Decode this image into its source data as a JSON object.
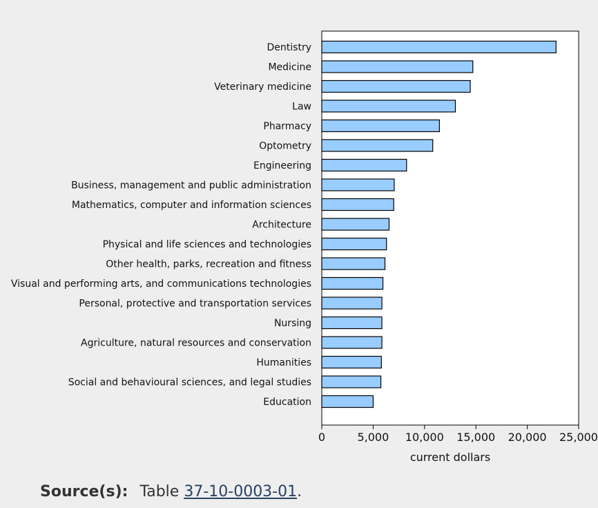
{
  "chart_data": {
    "type": "bar",
    "orientation": "horizontal",
    "categories": [
      "Dentistry",
      "Medicine",
      "Veterinary medicine",
      "Law",
      "Pharmacy",
      "Optometry",
      "Engineering",
      "Business, management and public administration",
      "Mathematics, computer and information sciences",
      "Architecture",
      "Physical and life sciences and technologies",
      "Other health, parks, recreation and fitness",
      "Visual and performing arts, and communications technologies",
      "Personal, protective and transportation services",
      "Nursing",
      "Agriculture, natural resources and conservation",
      "Humanities",
      "Social and behavioural sciences, and legal studies",
      "Education"
    ],
    "values": [
      22800,
      14700,
      14450,
      13000,
      11450,
      10800,
      8250,
      7050,
      7000,
      6550,
      6300,
      6150,
      5950,
      5850,
      5850,
      5850,
      5800,
      5750,
      5000
    ],
    "xlabel": "current dollars",
    "ylabel": "",
    "xlim": [
      0,
      25000
    ],
    "xticks": [
      0,
      5000,
      10000,
      15000,
      20000,
      25000
    ],
    "xtick_labels": [
      "0",
      "5,000",
      "10,000",
      "15,000",
      "20,000",
      "25,000"
    ],
    "bar_color": "#99ccff",
    "bar_edge_color": "#000000",
    "grid": false
  },
  "source": {
    "title": "Source(s):",
    "prefix": "Table",
    "link_text": "37-10-0003-01",
    "suffix": "."
  }
}
